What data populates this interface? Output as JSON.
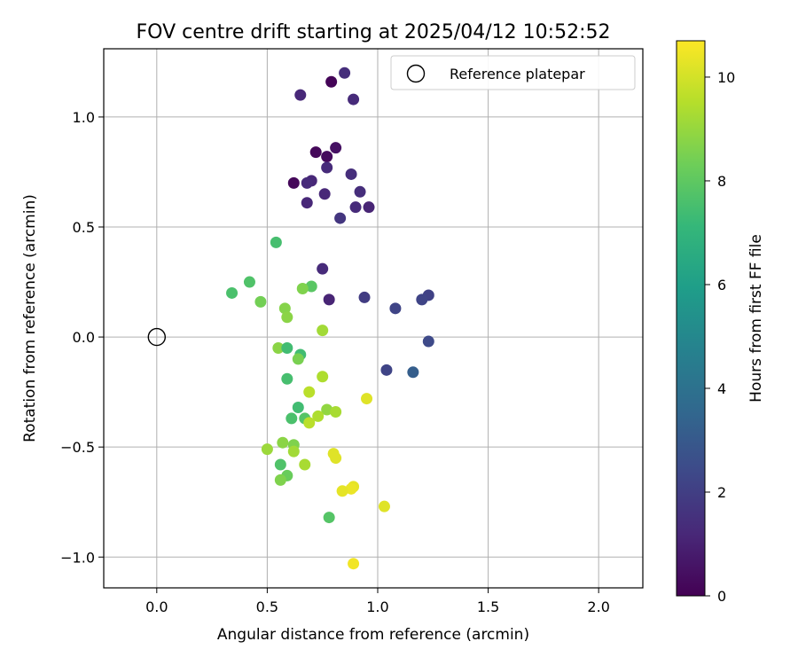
{
  "chart_data": {
    "type": "scatter",
    "title": "FOV centre drift starting at 2025/04/12 10:52:52",
    "xlabel": "Angular distance from reference (arcmin)",
    "ylabel": "Rotation from reference (arcmin)",
    "xlim": [
      -0.24,
      2.2
    ],
    "ylim": [
      -1.14,
      1.31
    ],
    "x_ticks": [
      0.0,
      0.5,
      1.0,
      1.5,
      2.0
    ],
    "x_tick_labels": [
      "0.0",
      "0.5",
      "1.0",
      "1.5",
      "2.0"
    ],
    "y_ticks": [
      -1.0,
      -0.5,
      0.0,
      0.5,
      1.0
    ],
    "y_tick_labels": [
      "−1.0",
      "−0.5",
      "0.0",
      "0.5",
      "1.0"
    ],
    "grid": true,
    "legend": {
      "placement": "top-right",
      "entries": [
        {
          "label": "Reference platepar",
          "marker": "open-circle"
        }
      ]
    },
    "reference_point": {
      "x": 0.0,
      "y": 0.0
    },
    "colorbar": {
      "label": "Hours from first FF file",
      "colormap": "viridis",
      "range": [
        0,
        10.7
      ],
      "ticks": [
        0,
        2,
        4,
        6,
        8,
        10
      ],
      "tick_labels": [
        "0",
        "2",
        "4",
        "6",
        "8",
        "10"
      ],
      "stops": [
        "#440154",
        "#482878",
        "#3e4989",
        "#31688e",
        "#26828e",
        "#1f9e89",
        "#35b779",
        "#6ece58",
        "#b5de2b",
        "#fde725"
      ]
    },
    "points": [
      {
        "x": 0.79,
        "y": 1.16,
        "c": 0.1
      },
      {
        "x": 0.85,
        "y": 1.2,
        "c": 1.4
      },
      {
        "x": 0.65,
        "y": 1.1,
        "c": 1.2
      },
      {
        "x": 0.89,
        "y": 1.08,
        "c": 1.3
      },
      {
        "x": 0.81,
        "y": 0.86,
        "c": 0.5
      },
      {
        "x": 0.72,
        "y": 0.84,
        "c": 0.2
      },
      {
        "x": 0.77,
        "y": 0.82,
        "c": 0.3
      },
      {
        "x": 0.77,
        "y": 0.77,
        "c": 1.3
      },
      {
        "x": 0.88,
        "y": 0.74,
        "c": 1.4
      },
      {
        "x": 0.7,
        "y": 0.71,
        "c": 1.2
      },
      {
        "x": 0.68,
        "y": 0.7,
        "c": 1.3
      },
      {
        "x": 0.62,
        "y": 0.7,
        "c": 0.2
      },
      {
        "x": 0.76,
        "y": 0.65,
        "c": 1.2
      },
      {
        "x": 0.92,
        "y": 0.66,
        "c": 1.4
      },
      {
        "x": 0.68,
        "y": 0.61,
        "c": 1.2
      },
      {
        "x": 0.9,
        "y": 0.59,
        "c": 1.3
      },
      {
        "x": 0.96,
        "y": 0.59,
        "c": 1.1
      },
      {
        "x": 0.83,
        "y": 0.54,
        "c": 1.7
      },
      {
        "x": 0.54,
        "y": 0.43,
        "c": 7.5
      },
      {
        "x": 0.75,
        "y": 0.31,
        "c": 1.3
      },
      {
        "x": 0.42,
        "y": 0.25,
        "c": 7.7
      },
      {
        "x": 0.34,
        "y": 0.2,
        "c": 7.6
      },
      {
        "x": 0.7,
        "y": 0.23,
        "c": 7.9
      },
      {
        "x": 0.66,
        "y": 0.22,
        "c": 8.6
      },
      {
        "x": 0.94,
        "y": 0.18,
        "c": 1.9
      },
      {
        "x": 1.23,
        "y": 0.19,
        "c": 2.1
      },
      {
        "x": 1.2,
        "y": 0.17,
        "c": 2.2
      },
      {
        "x": 0.78,
        "y": 0.17,
        "c": 1.1
      },
      {
        "x": 1.08,
        "y": 0.13,
        "c": 2.2
      },
      {
        "x": 0.47,
        "y": 0.16,
        "c": 8.4
      },
      {
        "x": 0.58,
        "y": 0.13,
        "c": 8.7
      },
      {
        "x": 0.59,
        "y": 0.09,
        "c": 8.8
      },
      {
        "x": 0.75,
        "y": 0.03,
        "c": 9.2
      },
      {
        "x": 1.23,
        "y": -0.02,
        "c": 2.4
      },
      {
        "x": 0.55,
        "y": -0.05,
        "c": 8.8
      },
      {
        "x": 0.59,
        "y": -0.05,
        "c": 7.4
      },
      {
        "x": 0.65,
        "y": -0.08,
        "c": 7.4
      },
      {
        "x": 0.64,
        "y": -0.1,
        "c": 8.5
      },
      {
        "x": 1.04,
        "y": -0.15,
        "c": 2.2
      },
      {
        "x": 1.16,
        "y": -0.16,
        "c": 3.2
      },
      {
        "x": 0.59,
        "y": -0.19,
        "c": 7.5
      },
      {
        "x": 0.75,
        "y": -0.18,
        "c": 9.4
      },
      {
        "x": 0.69,
        "y": -0.25,
        "c": 9.6
      },
      {
        "x": 0.95,
        "y": -0.28,
        "c": 10.2
      },
      {
        "x": 0.64,
        "y": -0.32,
        "c": 7.4
      },
      {
        "x": 0.77,
        "y": -0.33,
        "c": 8.9
      },
      {
        "x": 0.81,
        "y": -0.34,
        "c": 9.3
      },
      {
        "x": 0.61,
        "y": -0.37,
        "c": 7.6
      },
      {
        "x": 0.67,
        "y": -0.37,
        "c": 7.8
      },
      {
        "x": 0.73,
        "y": -0.36,
        "c": 9.4
      },
      {
        "x": 0.69,
        "y": -0.39,
        "c": 9.6
      },
      {
        "x": 0.57,
        "y": -0.48,
        "c": 8.8
      },
      {
        "x": 0.62,
        "y": -0.49,
        "c": 8.6
      },
      {
        "x": 0.5,
        "y": -0.51,
        "c": 9.1
      },
      {
        "x": 0.62,
        "y": -0.52,
        "c": 9.2
      },
      {
        "x": 0.8,
        "y": -0.53,
        "c": 10.2
      },
      {
        "x": 0.81,
        "y": -0.55,
        "c": 10.2
      },
      {
        "x": 0.56,
        "y": -0.58,
        "c": 7.7
      },
      {
        "x": 0.67,
        "y": -0.58,
        "c": 9.3
      },
      {
        "x": 0.59,
        "y": -0.63,
        "c": 8.2
      },
      {
        "x": 0.56,
        "y": -0.65,
        "c": 8.6
      },
      {
        "x": 0.89,
        "y": -0.68,
        "c": 10.3
      },
      {
        "x": 0.88,
        "y": -0.69,
        "c": 10.4
      },
      {
        "x": 0.84,
        "y": -0.7,
        "c": 10.3
      },
      {
        "x": 1.03,
        "y": -0.77,
        "c": 10.2
      },
      {
        "x": 0.78,
        "y": -0.82,
        "c": 7.8
      },
      {
        "x": 0.89,
        "y": -1.03,
        "c": 10.5
      }
    ]
  }
}
